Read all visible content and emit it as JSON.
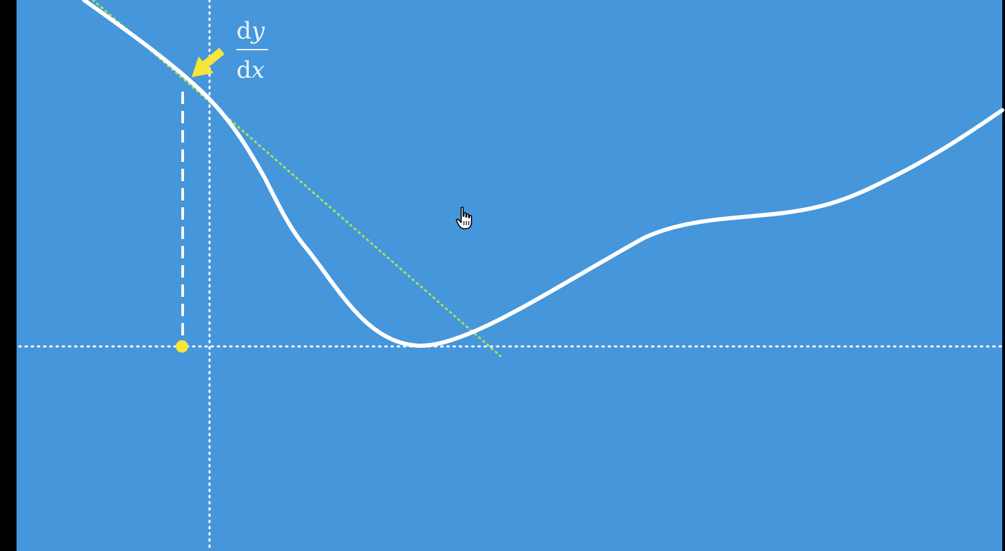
{
  "colors": {
    "background": "#4596db",
    "frame": "#000000",
    "curve": "#ffffff",
    "tangent": "#a9e25a",
    "highlight": "#f6e53a"
  },
  "annotation": {
    "derivative": {
      "numerator_d": "d",
      "numerator_var": "y",
      "denominator_d": "d",
      "denominator_var": "x"
    }
  },
  "icons": {
    "arrow": "arrow-icon",
    "cursor": "hand-pointer-icon"
  }
}
